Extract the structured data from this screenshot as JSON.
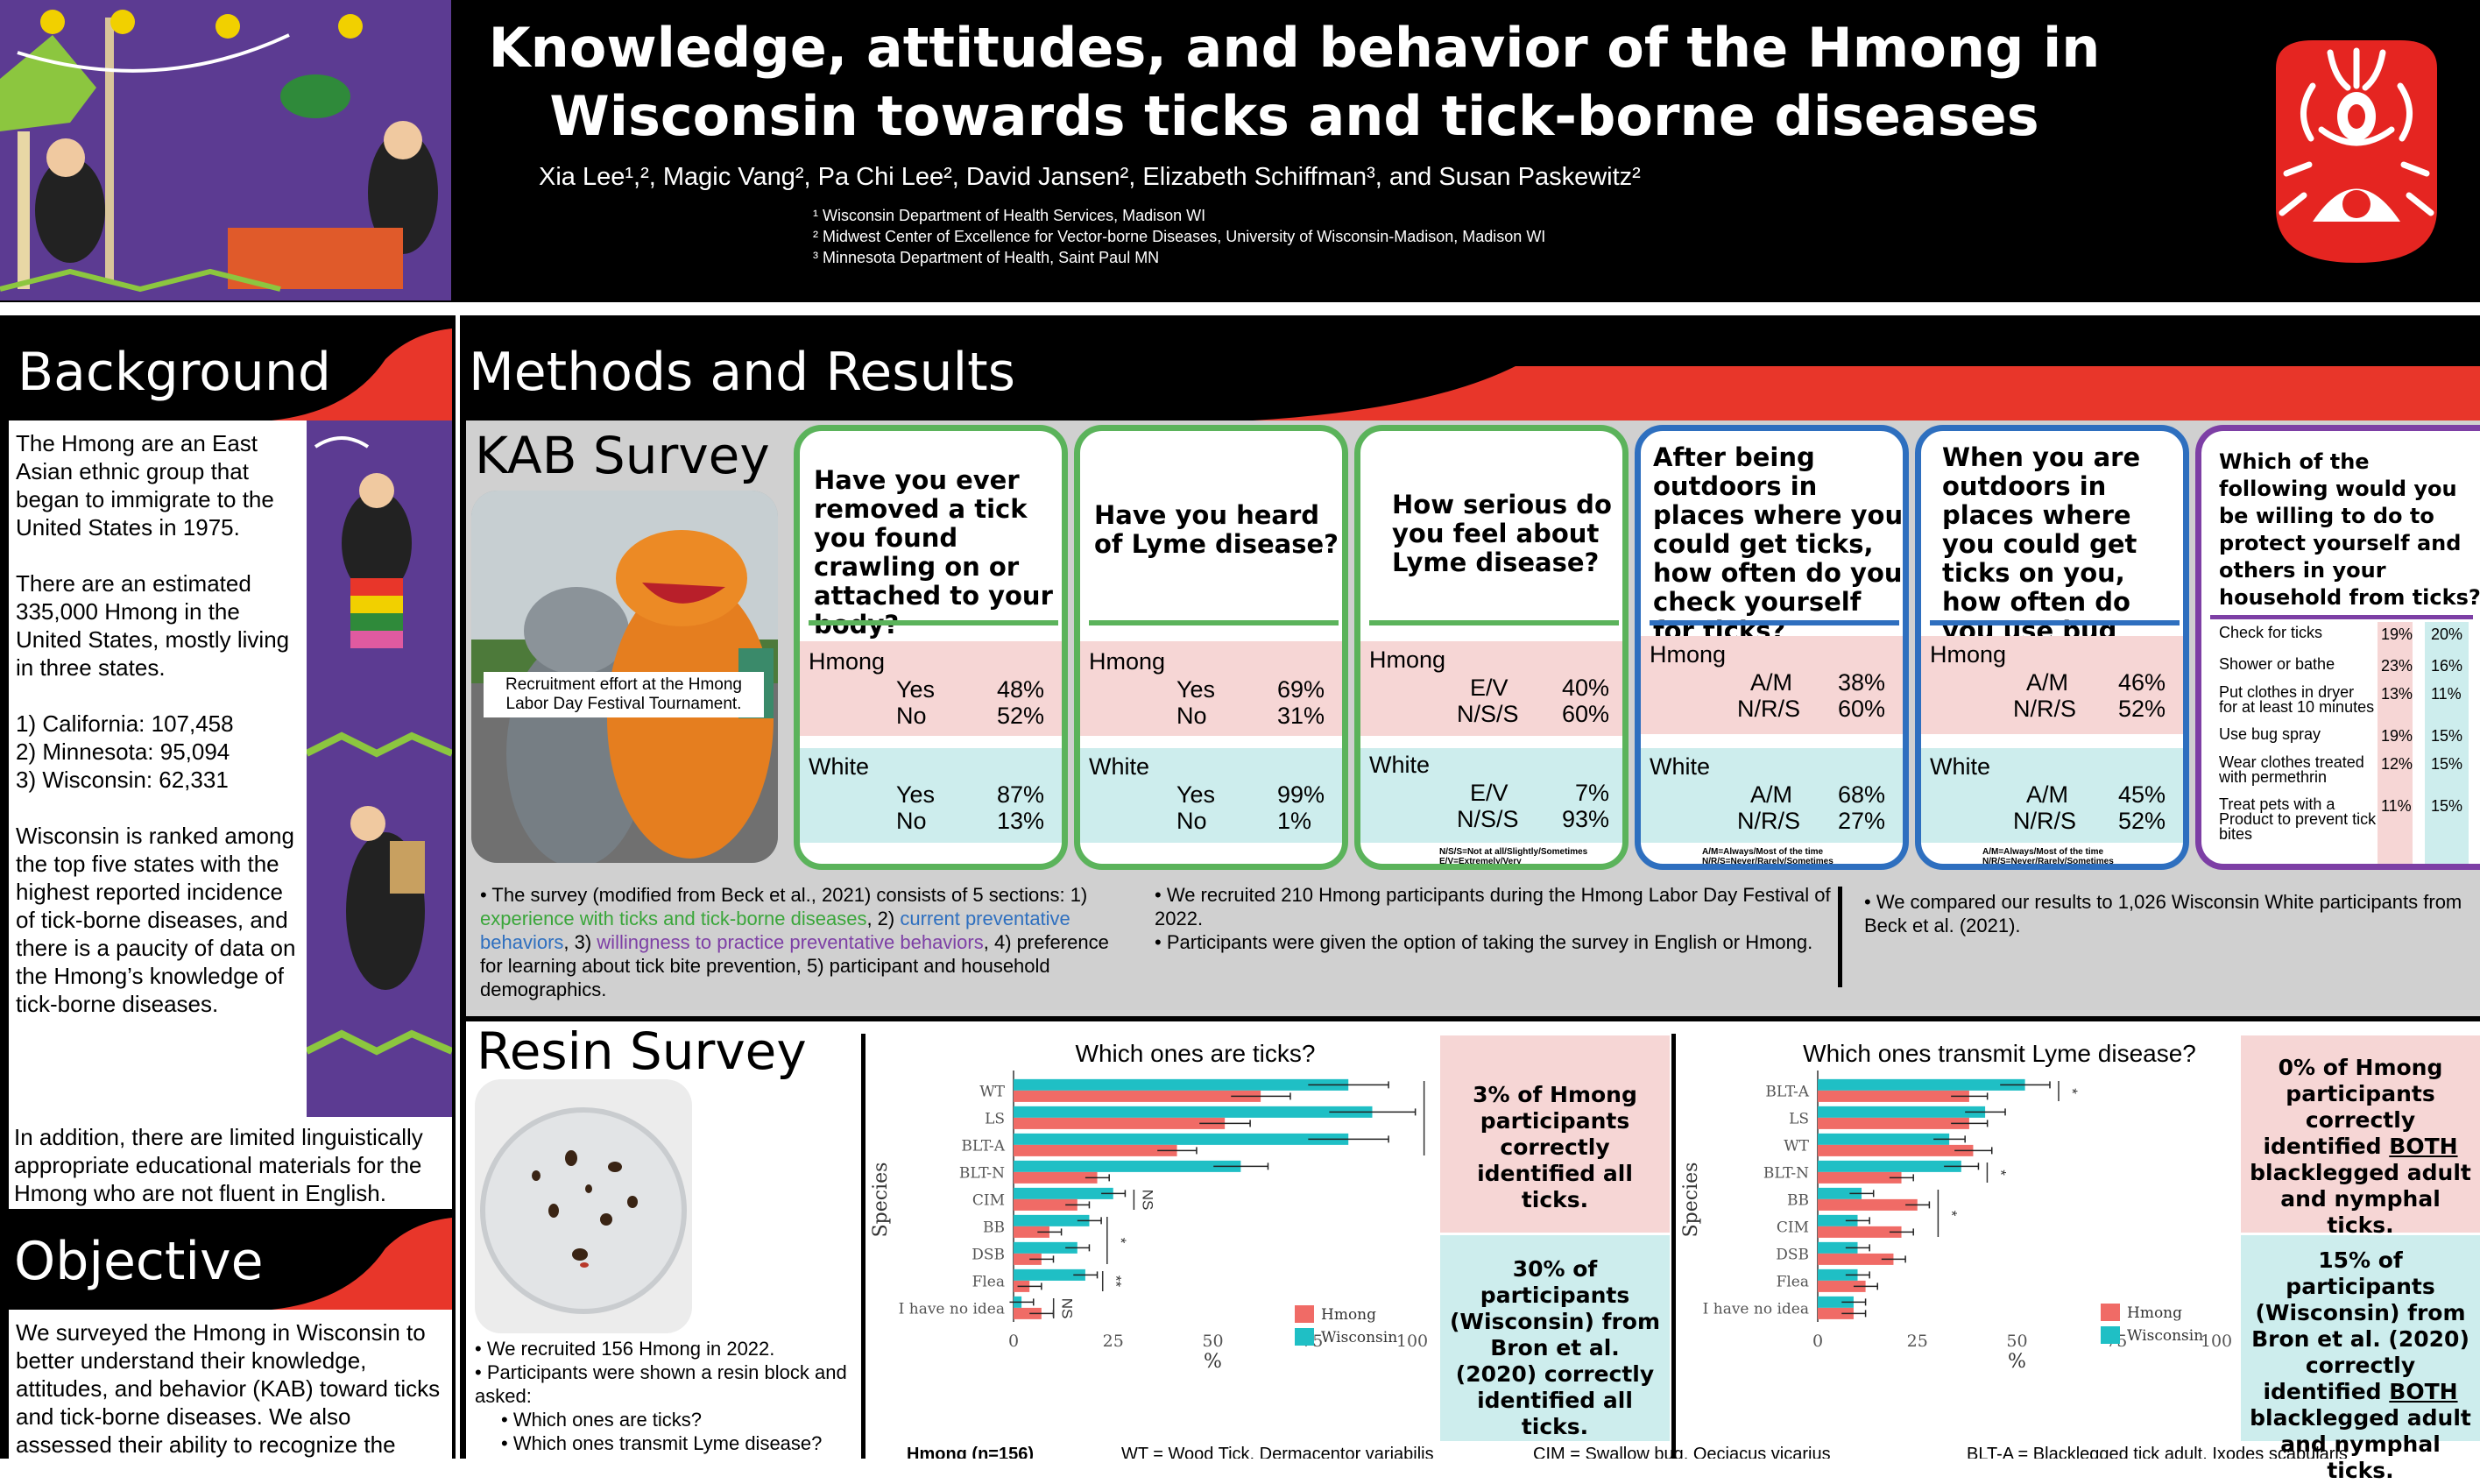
{
  "header": {
    "title_line1": "Knowledge, attitudes, and behavior of the Hmong in",
    "title_line2": "Wisconsin towards ticks and tick-borne diseases",
    "authors": "Xia Lee¹,², Magic Vang², Pa Chi Lee², David Jansen², Elizabeth Schiffman³, and Susan Paskewitz²",
    "affil1": "¹ Wisconsin Department of Health Services, Madison WI",
    "affil2": "² Midwest Center of Excellence for Vector-borne Diseases, University of Wisconsin-Madison, Madison WI",
    "affil3": "³ Minnesota Department of Health, Saint Paul MN"
  },
  "background": {
    "heading": "Background",
    "p1": "The Hmong are an East Asian ethnic group that began to immigrate to the United States in 1975.",
    "p2": "There are an estimated 335,000 Hmong in the United States, mostly living in three states.",
    "l1": "1) California: 107,458",
    "l2": "2) Minnesota: 95,094",
    "l3": "3) Wisconsin: 62,331",
    "p3": "Wisconsin is ranked among the top five states with the highest reported incidence of tick-borne diseases, and there is a paucity of data on the Hmong’s knowledge of tick-borne diseases.",
    "p4": "In addition, there are limited linguistically appropriate educational materials for the Hmong who are not fluent in English."
  },
  "objective": {
    "heading": "Objective",
    "text": "We surveyed the Hmong in Wisconsin to better understand their knowledge, attitudes, and behavior (KAB) toward ticks and tick-borne diseases. We also assessed their ability to recognize the"
  },
  "methods": {
    "heading": "Methods and Results"
  },
  "kab": {
    "heading": "KAB Survey",
    "photo_caption": "Recruitment effort at the Hmong Labor Day Festival Tournament.",
    "q1": {
      "question": "Have you ever removed a tick you found crawling on or attached to your body?",
      "h_label": "Hmong",
      "h_r1": "Yes",
      "h_v1": "48%",
      "h_r2": "No",
      "h_v2": "52%",
      "w_label": "White",
      "w_r1": "Yes",
      "w_v1": "87%",
      "w_r2": "No",
      "w_v2": "13%"
    },
    "q2": {
      "question": "Have you heard of Lyme disease?",
      "h_label": "Hmong",
      "h_r1": "Yes",
      "h_v1": "69%",
      "h_r2": "No",
      "h_v2": "31%",
      "w_label": "White",
      "w_r1": "Yes",
      "w_v1": "99%",
      "w_r2": "No",
      "w_v2": "1%"
    },
    "q3": {
      "question": "How serious do you feel about Lyme disease?",
      "h_label": "Hmong",
      "h_r1": "E/V",
      "h_v1": "40%",
      "h_r2": "N/S/S",
      "h_v2": "60%",
      "w_label": "White",
      "w_r1": "E/V",
      "w_v1": "7%",
      "w_r2": "N/S/S",
      "w_v2": "93%",
      "note1": "N/S/S=Not at all/Slightly/Sometimes",
      "note2": "E/V=Extremely/Very"
    },
    "q4": {
      "question": "After being outdoors in places where you could get ticks, how often do you check yourself for ticks?",
      "h_label": "Hmong",
      "h_r1": "A/M",
      "h_v1": "38%",
      "h_r2": "N/R/S",
      "h_v2": "60%",
      "w_label": "White",
      "w_r1": "A/M",
      "w_v1": "68%",
      "w_r2": "N/R/S",
      "w_v2": "27%",
      "note1": "A/M=Always/Most of the time",
      "note2": "N/R/S=Never/Rarely/Sometimes"
    },
    "q5": {
      "question": "When you are outdoors in places where you could get ticks on you, how often do you use bug spray?",
      "h_label": "Hmong",
      "h_r1": "A/M",
      "h_v1": "46%",
      "h_r2": "N/R/S",
      "h_v2": "52%",
      "w_label": "White",
      "w_r1": "A/M",
      "w_v1": "45%",
      "w_r2": "N/R/S",
      "w_v2": "52%",
      "note1": "A/M=Always/Most of the time",
      "note2": "N/R/S=Never/Rarely/Sometimes"
    },
    "q6": {
      "question": "Which of the following would you be willing to do to protect yourself and others in your household from ticks?",
      "items": [
        {
          "label": "Check for ticks",
          "h": "19%",
          "w": "20%"
        },
        {
          "label": "Shower or bathe",
          "h": "23%",
          "w": "16%"
        },
        {
          "label": "Put clothes in dryer for at least 10 minutes",
          "h": "13%",
          "w": "11%"
        },
        {
          "label": "Use bug spray",
          "h": "19%",
          "w": "15%"
        },
        {
          "label": "Wear clothes treated with permethrin",
          "h": "12%",
          "w": "15%"
        },
        {
          "label": "Treat pets with a Product to prevent tick bites",
          "h": "11%",
          "w": "15%"
        }
      ]
    },
    "desc1_pre": "The survey (modified from Beck et al., 2021) consists of 5 sections: 1) ",
    "desc1_green": "experience with ticks and tick-borne diseases",
    "desc1_mid1": ", 2) ",
    "desc1_blue": "current preventative behaviors",
    "desc1_mid2": ", 3) ",
    "desc1_purple": "willingness to practice preventative behaviors",
    "desc1_post": ", 4) preference for learning about tick bite prevention, 5) participant and household demographics.",
    "desc2a": "We recruited 210 Hmong participants during the Hmong Labor Day Festival of 2022.",
    "desc2b": "Participants were given the option of taking the survey in English or Hmong.",
    "desc3": "We compared our results to 1,026 Wisconsin White participants from Beck et al. (2021)."
  },
  "resin": {
    "heading": "Resin Survey",
    "b1": "We recruited 156 Hmong in 2022.",
    "b2": "Participants were shown a resin block and asked:",
    "b3": "Which ones are ticks?",
    "b4": "Which ones transmit Lyme disease?",
    "callout1": "3% of Hmong participants correctly identified all ticks.",
    "callout2": "30% of participants (Wisconsin) from Bron et al. (2020) correctly identified all ticks.",
    "callout3_a": "0% of Hmong participants correctly identified ",
    "callout3_b": "BOTH",
    "callout3_c": " blacklegged adult and nymphal ticks.",
    "callout4_a": "15% of participants (Wisconsin) from Bron et al. (2020) correctly identified ",
    "callout4_b": "BOTH",
    "callout4_c": " blacklegged adult and nymphal ticks.",
    "footer_bits": [
      "Hmong (n=156)",
      "WT = Wood Tick, Dermacentor variabilis",
      "CIM = Swallow bug, Oeciacus vicarius",
      "BLT-A = Blacklegged tick adult, Ixodes scapularis"
    ]
  },
  "chart_data": [
    {
      "type": "bar",
      "orientation": "horizontal",
      "title": "Which ones are ticks?",
      "xlabel": "%",
      "ylabel": "Species",
      "xlim": [
        0,
        100
      ],
      "xticks": [
        "0",
        "25",
        "50",
        "75",
        "100"
      ],
      "categories": [
        "WT",
        "LS",
        "BLT-A",
        "BLT-N",
        "CIM",
        "BB",
        "DSB",
        "Flea",
        "I have no idea"
      ],
      "series": [
        {
          "name": "Hmong",
          "color": "#f06b66",
          "values": [
            62,
            53,
            41,
            21,
            16,
            9,
            7,
            4,
            7
          ]
        },
        {
          "name": "Wisconsin",
          "color": "#1fbfc5",
          "values": [
            84,
            90,
            84,
            57,
            25,
            19,
            16,
            18,
            2
          ]
        }
      ],
      "annotations": [
        {
          "text": "***",
          "span": [
            "WT",
            "BLT-A"
          ]
        },
        {
          "text": "NS",
          "span": [
            "CIM",
            "CIM"
          ]
        },
        {
          "text": "*",
          "span": [
            "BB",
            "DSB"
          ]
        },
        {
          "text": "**",
          "span": [
            "Flea",
            "Flea"
          ]
        },
        {
          "text": "NS",
          "span": [
            "I have no idea",
            "I have no idea"
          ]
        }
      ]
    },
    {
      "type": "bar",
      "orientation": "horizontal",
      "title": "Which ones transmit Lyme disease?",
      "xlabel": "%",
      "ylabel": "Species",
      "xlim": [
        0,
        100
      ],
      "xticks": [
        "0",
        "25",
        "50",
        "75",
        "100"
      ],
      "categories": [
        "BLT-A",
        "LS",
        "WT",
        "BLT-N",
        "BB",
        "CIM",
        "DSB",
        "Flea",
        "I have no idea"
      ],
      "series": [
        {
          "name": "Hmong",
          "color": "#f06b66",
          "values": [
            38,
            38,
            39,
            21,
            25,
            21,
            19,
            12,
            9
          ]
        },
        {
          "name": "Wisconsin",
          "color": "#1fbfc5",
          "values": [
            52,
            42,
            33,
            36,
            11,
            10,
            10,
            10,
            9
          ]
        }
      ],
      "annotations": [
        {
          "text": "*",
          "span": [
            "BLT-A",
            "BLT-A"
          ]
        },
        {
          "text": "*",
          "span": [
            "BLT-N",
            "BLT-N"
          ]
        },
        {
          "text": "*",
          "span": [
            "BB",
            "CIM"
          ]
        }
      ]
    }
  ]
}
